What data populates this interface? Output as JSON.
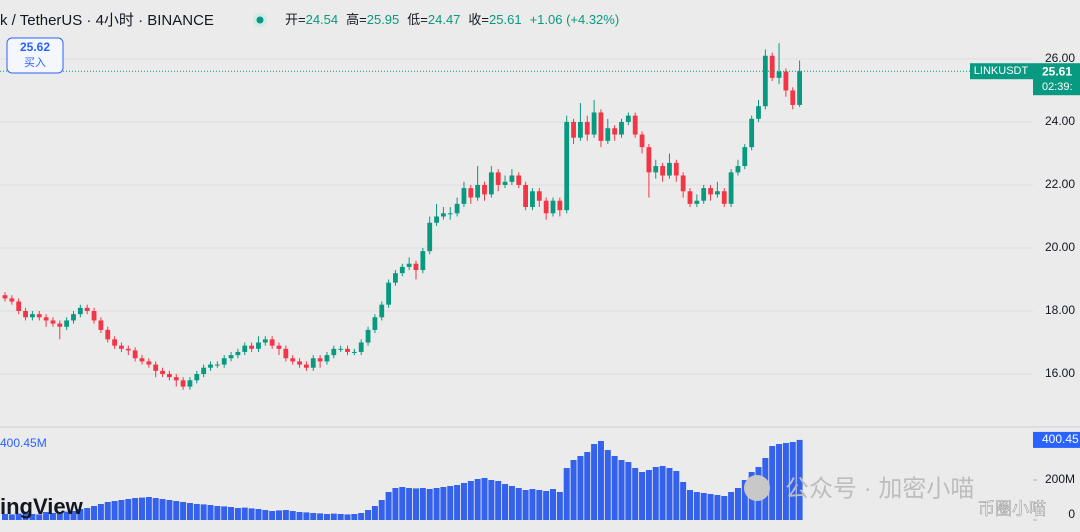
{
  "chart_data": {
    "type": "candlestick",
    "title": "k / TetherUS · 4小时 · BINANCE",
    "ohlc_legend": [
      {
        "label": "开=",
        "value": 24.54
      },
      {
        "label": "高=",
        "value": 25.95
      },
      {
        "label": "低=",
        "value": 24.47
      },
      {
        "label": "收=",
        "value": 25.61
      }
    ],
    "change": "+1.06 (+4.32%)",
    "buy_price": 25.62,
    "buy_label": "买入",
    "countdown": "02:39:",
    "grid": true,
    "ylim": [
      14.35,
      27.87
    ],
    "yticks": [
      {
        "value": 16,
        "label": "16.00"
      },
      {
        "value": 18,
        "label": "18.00"
      },
      {
        "value": 20,
        "label": "20.00"
      },
      {
        "value": 22,
        "label": "22.00"
      },
      {
        "value": 24,
        "label": "24.00"
      },
      {
        "value": 26,
        "label": "26.00"
      }
    ],
    "series": [
      {
        "name": "LINKUSDT",
        "color_up": "#089981",
        "color_down": "#f23645",
        "open": [
          18.5,
          18.4,
          18.3,
          18.0,
          17.8,
          17.9,
          17.8,
          17.7,
          17.6,
          17.5,
          17.7,
          17.9,
          18.1,
          18.0,
          17.7,
          17.4,
          17.1,
          16.9,
          16.8,
          16.75,
          16.5,
          16.4,
          16.3,
          16.1,
          16.0,
          15.9,
          15.8,
          15.6,
          15.8,
          16.0,
          16.2,
          16.3,
          16.3,
          16.5,
          16.6,
          16.7,
          16.9,
          16.8,
          17.0,
          17.1,
          16.9,
          16.8,
          16.5,
          16.4,
          16.3,
          16.2,
          16.5,
          16.4,
          16.6,
          16.8,
          16.8,
          16.7,
          16.7,
          17.0,
          17.4,
          17.8,
          18.2,
          18.9,
          19.2,
          19.4,
          19.5,
          19.3,
          19.9,
          20.8,
          21.0,
          21.1,
          21.1,
          21.4,
          21.9,
          21.6,
          22.0,
          21.7,
          22.4,
          22.0,
          22.1,
          22.3,
          22.0,
          21.3,
          21.8,
          21.5,
          21.1,
          21.5,
          21.2,
          24.0,
          23.5,
          24.0,
          23.6,
          24.3,
          23.4,
          23.8,
          23.6,
          24.0,
          24.2,
          23.6,
          23.2,
          22.4,
          22.6,
          22.3,
          22.7,
          22.3,
          21.8,
          21.4,
          21.5,
          21.9,
          21.7,
          21.8,
          21.4,
          22.4,
          22.6,
          23.2,
          24.1,
          24.5,
          26.1,
          25.4,
          25.6,
          25.0,
          24.54
        ],
        "high": [
          18.6,
          18.5,
          18.4,
          18.1,
          18.0,
          18.0,
          17.9,
          17.8,
          17.7,
          17.8,
          18.0,
          18.2,
          18.2,
          18.1,
          17.8,
          17.5,
          17.2,
          17.0,
          16.9,
          16.85,
          16.6,
          16.5,
          16.4,
          16.2,
          16.1,
          16.0,
          15.9,
          15.9,
          16.1,
          16.3,
          16.4,
          16.4,
          16.6,
          16.7,
          16.8,
          17.0,
          17.0,
          17.2,
          17.2,
          17.2,
          17.0,
          16.9,
          16.6,
          16.5,
          16.4,
          16.6,
          16.6,
          16.7,
          16.9,
          16.9,
          16.9,
          16.8,
          17.1,
          17.5,
          17.9,
          18.3,
          19.0,
          19.3,
          19.5,
          19.7,
          19.6,
          20.0,
          21.0,
          21.4,
          21.3,
          21.3,
          21.6,
          22.1,
          22.0,
          22.6,
          22.1,
          22.6,
          22.5,
          22.3,
          22.5,
          22.4,
          22.1,
          21.9,
          21.9,
          21.6,
          21.6,
          21.6,
          24.2,
          24.1,
          24.6,
          24.2,
          24.7,
          24.4,
          24.1,
          23.9,
          24.1,
          24.3,
          24.3,
          23.7,
          23.3,
          22.8,
          22.7,
          23.0,
          22.8,
          22.4,
          21.9,
          21.7,
          22.0,
          22.0,
          22.1,
          21.9,
          22.5,
          22.8,
          23.3,
          24.2,
          24.7,
          26.3,
          26.2,
          26.5,
          25.7,
          25.1,
          25.95
        ],
        "low": [
          18.3,
          18.2,
          17.9,
          17.7,
          17.7,
          17.7,
          17.5,
          17.5,
          17.1,
          17.4,
          17.6,
          17.8,
          17.9,
          17.6,
          17.3,
          17.0,
          16.8,
          16.7,
          16.6,
          16.4,
          16.3,
          16.2,
          15.9,
          15.9,
          15.8,
          15.6,
          15.5,
          15.5,
          15.7,
          15.9,
          16.1,
          16.2,
          16.2,
          16.4,
          16.5,
          16.6,
          16.7,
          16.7,
          16.9,
          16.8,
          16.6,
          16.4,
          16.3,
          16.2,
          16.1,
          16.1,
          16.2,
          16.3,
          16.5,
          16.7,
          16.6,
          16.6,
          16.6,
          16.9,
          17.3,
          17.7,
          18.1,
          18.8,
          19.1,
          19.3,
          19.0,
          19.2,
          19.8,
          20.7,
          20.9,
          20.9,
          21.0,
          21.3,
          21.4,
          21.5,
          21.5,
          21.6,
          21.8,
          21.9,
          22.0,
          21.9,
          21.2,
          21.2,
          21.3,
          20.9,
          21.0,
          21.0,
          21.1,
          23.3,
          23.4,
          23.4,
          23.5,
          23.2,
          23.3,
          23.4,
          23.5,
          23.9,
          23.5,
          23.0,
          21.6,
          22.2,
          22.1,
          22.2,
          22.1,
          21.6,
          21.3,
          21.3,
          21.4,
          21.5,
          21.6,
          21.3,
          21.3,
          22.3,
          22.5,
          23.1,
          24.0,
          24.4,
          25.3,
          25.2,
          24.8,
          24.4,
          24.47
        ],
        "close": [
          18.4,
          18.3,
          18.0,
          17.8,
          17.9,
          17.8,
          17.7,
          17.6,
          17.5,
          17.7,
          17.9,
          18.1,
          18.0,
          17.7,
          17.4,
          17.1,
          16.9,
          16.8,
          16.75,
          16.5,
          16.4,
          16.3,
          16.1,
          16.0,
          15.9,
          15.8,
          15.6,
          15.8,
          16.0,
          16.2,
          16.3,
          16.3,
          16.5,
          16.6,
          16.7,
          16.9,
          16.8,
          17.0,
          17.1,
          16.9,
          16.8,
          16.5,
          16.4,
          16.3,
          16.2,
          16.5,
          16.4,
          16.6,
          16.8,
          16.8,
          16.7,
          16.7,
          17.0,
          17.4,
          17.8,
          18.2,
          18.9,
          19.2,
          19.4,
          19.5,
          19.3,
          19.9,
          20.8,
          21.0,
          21.1,
          21.1,
          21.4,
          21.9,
          21.6,
          22.0,
          21.7,
          22.4,
          22.0,
          22.1,
          22.3,
          22.0,
          21.3,
          21.8,
          21.5,
          21.1,
          21.5,
          21.2,
          24.0,
          23.5,
          24.0,
          23.6,
          24.3,
          23.4,
          23.8,
          23.6,
          24.0,
          24.2,
          23.6,
          23.2,
          22.4,
          22.6,
          22.3,
          22.7,
          22.3,
          21.8,
          21.4,
          21.5,
          21.9,
          21.7,
          21.8,
          21.4,
          22.4,
          22.6,
          23.2,
          24.1,
          24.5,
          26.1,
          25.4,
          25.6,
          25.0,
          24.54,
          25.61
        ]
      }
    ],
    "volume": {
      "legend": "400.45M",
      "color": "#3562ec",
      "ylim": [
        0,
        460
      ],
      "yticks": [
        0,
        {
          "value": 200,
          "label": "200M"
        }
      ],
      "values": [
        30,
        28,
        32,
        35,
        30,
        28,
        40,
        35,
        38,
        42,
        45,
        55,
        60,
        70,
        80,
        90,
        95,
        100,
        105,
        110,
        112,
        115,
        110,
        105,
        100,
        95,
        90,
        85,
        80,
        78,
        75,
        70,
        68,
        65,
        60,
        62,
        58,
        55,
        50,
        45,
        48,
        50,
        45,
        40,
        38,
        35,
        33,
        30,
        32,
        30,
        28,
        30,
        35,
        50,
        70,
        100,
        140,
        160,
        165,
        160,
        158,
        160,
        155,
        160,
        165,
        170,
        175,
        185,
        195,
        205,
        210,
        200,
        195,
        180,
        170,
        160,
        150,
        155,
        150,
        145,
        155,
        140,
        260,
        300,
        320,
        340,
        380,
        395,
        350,
        320,
        300,
        290,
        260,
        240,
        250,
        265,
        270,
        260,
        245,
        190,
        150,
        140,
        135,
        130,
        125,
        120,
        140,
        160,
        200,
        240,
        265,
        310,
        370,
        380,
        385,
        390,
        400.45
      ]
    }
  },
  "watermarks": {
    "brand": "ingView",
    "wechat": "公众号 · 加密小喵",
    "account": "币圈小喵"
  }
}
